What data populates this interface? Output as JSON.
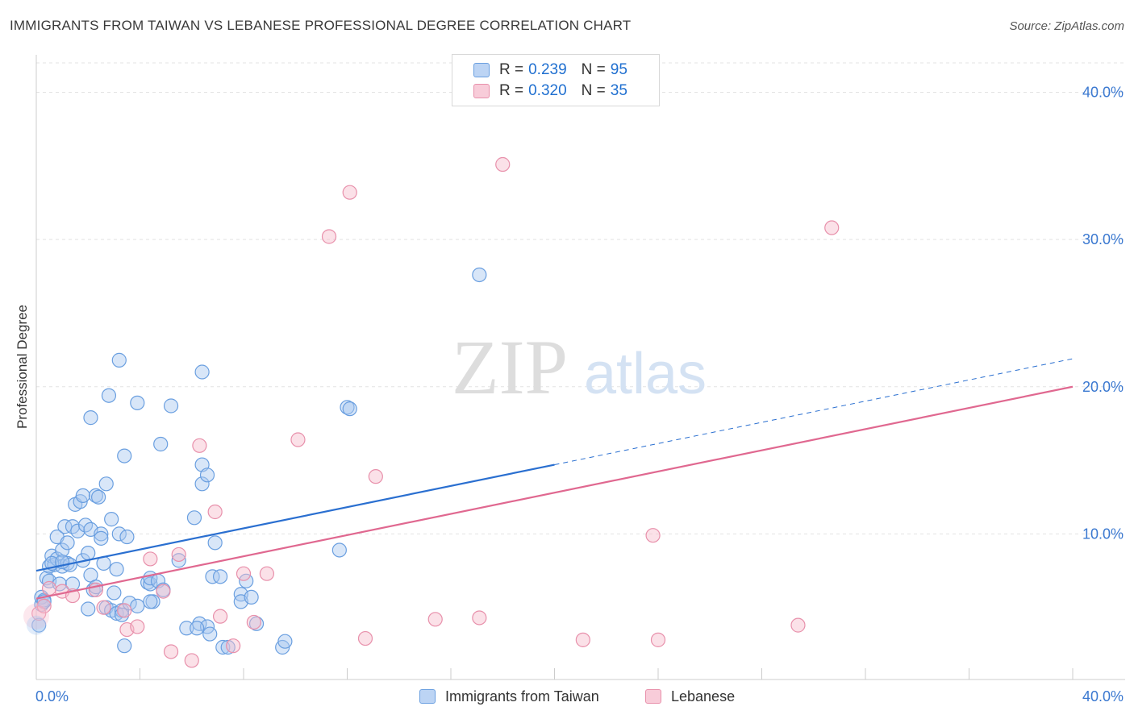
{
  "title": "IMMIGRANTS FROM TAIWAN VS LEBANESE PROFESSIONAL DEGREE CORRELATION CHART",
  "source": "Source: ZipAtlas.com",
  "watermark": {
    "zip": "ZIP",
    "atlas": "atlas"
  },
  "legend": {
    "r_label": "R =",
    "n_label": "N =",
    "entries": [
      {
        "r": "0.239",
        "n": "95"
      },
      {
        "r": "0.320",
        "n": "35"
      }
    ]
  },
  "bottom_legend": [
    "Immigrants from Taiwan",
    "Lebanese"
  ],
  "colors": {
    "taiwan_fill": "#a8c8f0",
    "taiwan_stroke": "#6a9fe0",
    "taiwan_line": "#2a6fd0",
    "lebanese_fill": "#f6bccd",
    "lebanese_stroke": "#e890ab",
    "lebanese_line": "#e06890",
    "tick_label": "#3a78d0"
  },
  "chart_data": {
    "type": "scatter",
    "title": "IMMIGRANTS FROM TAIWAN VS LEBANESE PROFESSIONAL DEGREE CORRELATION CHART",
    "xlabel": "",
    "ylabel": "Professional Degree",
    "xlim": [
      0,
      40
    ],
    "ylim": [
      0,
      42
    ],
    "x_tick_labels": [
      "0.0%",
      "40.0%"
    ],
    "y_ticks": [
      10,
      20,
      30,
      40
    ],
    "y_tick_labels": [
      "10.0%",
      "20.0%",
      "30.0%",
      "40.0%"
    ],
    "grid": true,
    "legend_position": "top-center",
    "series": [
      {
        "name": "Immigrants from Taiwan",
        "r": 0.239,
        "n": 95,
        "trend": {
          "x0": 0,
          "y0": 7.5,
          "x1": 20,
          "y1": 14.7,
          "dash_to_x": 40,
          "dash_to_y": 21.9
        },
        "points": [
          [
            0.1,
            3.8
          ],
          [
            0.2,
            5.2
          ],
          [
            0.2,
            5.7
          ],
          [
            0.3,
            5.5
          ],
          [
            0.4,
            7.0
          ],
          [
            0.5,
            6.8
          ],
          [
            0.5,
            7.8
          ],
          [
            0.6,
            8.5
          ],
          [
            0.7,
            7.9
          ],
          [
            0.8,
            9.8
          ],
          [
            0.8,
            8.3
          ],
          [
            0.9,
            6.6
          ],
          [
            1.0,
            7.8
          ],
          [
            1.0,
            8.9
          ],
          [
            1.1,
            10.5
          ],
          [
            1.2,
            9.4
          ],
          [
            1.2,
            8.0
          ],
          [
            1.3,
            7.9
          ],
          [
            1.4,
            6.6
          ],
          [
            1.4,
            10.5
          ],
          [
            1.5,
            12.0
          ],
          [
            1.6,
            10.2
          ],
          [
            1.7,
            12.2
          ],
          [
            1.8,
            8.2
          ],
          [
            1.9,
            10.6
          ],
          [
            2.0,
            8.7
          ],
          [
            2.1,
            7.2
          ],
          [
            2.1,
            10.3
          ],
          [
            2.2,
            6.2
          ],
          [
            2.3,
            12.6
          ],
          [
            2.3,
            6.4
          ],
          [
            2.4,
            12.5
          ],
          [
            2.5,
            10.0
          ],
          [
            2.5,
            9.7
          ],
          [
            2.6,
            8.0
          ],
          [
            2.7,
            5.0
          ],
          [
            2.7,
            13.4
          ],
          [
            2.8,
            19.4
          ],
          [
            2.9,
            4.8
          ],
          [
            2.9,
            11.0
          ],
          [
            3.0,
            6.0
          ],
          [
            3.1,
            7.6
          ],
          [
            3.1,
            4.6
          ],
          [
            3.2,
            10.0
          ],
          [
            3.3,
            4.8
          ],
          [
            3.3,
            4.5
          ],
          [
            3.4,
            2.4
          ],
          [
            3.4,
            15.3
          ],
          [
            3.5,
            9.8
          ],
          [
            3.6,
            5.3
          ],
          [
            3.9,
            18.9
          ],
          [
            3.9,
            5.1
          ],
          [
            4.3,
            6.7
          ],
          [
            4.4,
            6.6
          ],
          [
            4.4,
            7.0
          ],
          [
            4.5,
            5.4
          ],
          [
            4.7,
            6.8
          ],
          [
            4.8,
            16.1
          ],
          [
            4.9,
            6.2
          ],
          [
            5.2,
            18.7
          ],
          [
            5.5,
            8.2
          ],
          [
            5.8,
            3.6
          ],
          [
            6.1,
            11.1
          ],
          [
            6.3,
            3.9
          ],
          [
            6.4,
            14.7
          ],
          [
            6.4,
            13.4
          ],
          [
            6.6,
            3.7
          ],
          [
            6.6,
            14.0
          ],
          [
            6.7,
            3.2
          ],
          [
            6.8,
            7.1
          ],
          [
            6.9,
            9.4
          ],
          [
            7.1,
            7.1
          ],
          [
            7.2,
            2.3
          ],
          [
            7.9,
            5.9
          ],
          [
            7.9,
            5.4
          ],
          [
            8.1,
            6.8
          ],
          [
            8.3,
            5.7
          ],
          [
            8.5,
            3.9
          ],
          [
            9.5,
            2.3
          ],
          [
            9.6,
            2.7
          ],
          [
            11.7,
            8.9
          ],
          [
            12.0,
            18.6
          ],
          [
            12.1,
            18.5
          ],
          [
            17.1,
            27.6
          ],
          [
            3.2,
            21.8
          ],
          [
            6.4,
            21.0
          ],
          [
            2.1,
            17.9
          ],
          [
            1.8,
            12.6
          ],
          [
            0.3,
            5.4
          ],
          [
            0.6,
            8.0
          ],
          [
            1.0,
            8.1
          ],
          [
            2.0,
            4.9
          ],
          [
            4.4,
            5.4
          ],
          [
            6.2,
            3.6
          ],
          [
            7.4,
            2.3
          ]
        ]
      },
      {
        "name": "Lebanese",
        "r": 0.32,
        "n": 35,
        "trend": {
          "x0": 0,
          "y0": 5.6,
          "x1": 40,
          "y1": 20.0
        },
        "points": [
          [
            0.1,
            4.6
          ],
          [
            0.5,
            6.3
          ],
          [
            1.0,
            6.1
          ],
          [
            1.4,
            5.8
          ],
          [
            2.3,
            6.2
          ],
          [
            2.6,
            5.0
          ],
          [
            3.4,
            4.8
          ],
          [
            3.5,
            3.5
          ],
          [
            3.9,
            3.7
          ],
          [
            4.4,
            8.3
          ],
          [
            4.9,
            6.1
          ],
          [
            5.2,
            2.0
          ],
          [
            5.5,
            8.6
          ],
          [
            6.0,
            1.4
          ],
          [
            6.3,
            16.0
          ],
          [
            6.9,
            11.5
          ],
          [
            7.1,
            4.4
          ],
          [
            7.6,
            2.4
          ],
          [
            8.0,
            7.3
          ],
          [
            8.4,
            4.0
          ],
          [
            8.9,
            7.3
          ],
          [
            10.1,
            16.4
          ],
          [
            11.3,
            30.2
          ],
          [
            12.1,
            33.2
          ],
          [
            12.7,
            2.9
          ],
          [
            13.1,
            13.9
          ],
          [
            15.4,
            4.2
          ],
          [
            17.1,
            4.3
          ],
          [
            18.0,
            35.1
          ],
          [
            21.1,
            2.8
          ],
          [
            23.8,
            9.9
          ],
          [
            24.0,
            2.8
          ],
          [
            29.4,
            3.8
          ],
          [
            30.7,
            30.8
          ],
          [
            0.3,
            5.1
          ]
        ]
      }
    ]
  }
}
